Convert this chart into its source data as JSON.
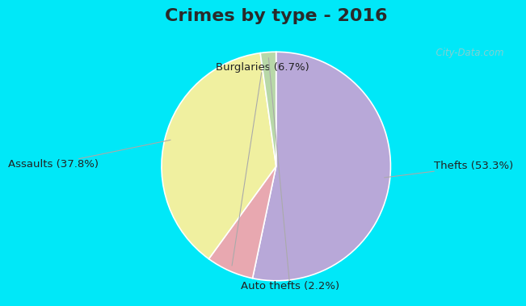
{
  "title": "Crimes by type - 2016",
  "slices": [
    {
      "label": "Thefts (53.3%)",
      "pct": 53.3,
      "color": "#b8a8d8"
    },
    {
      "label": "Burglaries (6.7%)",
      "pct": 6.7,
      "color": "#e8a8b0"
    },
    {
      "label": "Assaults (37.8%)",
      "pct": 37.8,
      "color": "#f0f0a0"
    },
    {
      "label": "Auto thefts (2.2%)",
      "pct": 2.2,
      "color": "#b8d8a8"
    }
  ],
  "title_fontsize": 16,
  "label_fontsize": 9.5,
  "bg_cyan": "#00e8f8",
  "bg_inner": "#d0ede0",
  "watermark": "  City-Data.com",
  "startangle": 90,
  "title_color": "#2a2a2a",
  "label_color": "#222222",
  "line_color": "#aaaaaa",
  "top_bar_height": 0.115,
  "bottom_bar_height": 0.07
}
